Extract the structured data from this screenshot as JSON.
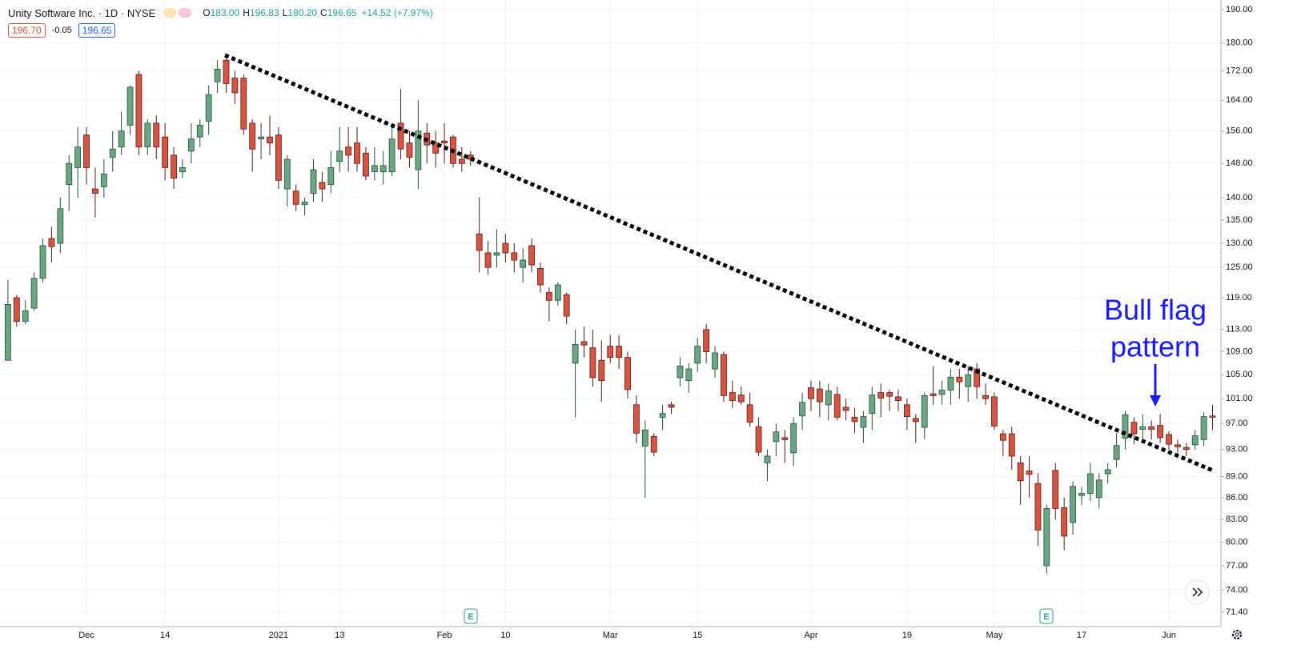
{
  "header": {
    "symbol": "Unity Software Inc. · 1D · NYSE",
    "ohlc": [
      {
        "key": "O",
        "value": "183.00"
      },
      {
        "key": "H",
        "value": "196.83"
      },
      {
        "key": "L",
        "value": "180.20"
      },
      {
        "key": "C",
        "value": "196.65"
      }
    ],
    "change": "+14.52 (+7.97%)",
    "bid": "196.70",
    "spread": "-0.05",
    "ask": "196.65"
  },
  "earnings_label": "E",
  "chart_data": {
    "type": "candlestick",
    "log_scale": true,
    "grid": true,
    "up_color": "#6ba583",
    "down_color": "#d75442",
    "up_border": "#225437",
    "down_border": "#5b1a13",
    "annotation": [
      "Bull flag",
      "pattern"
    ],
    "annotation_color": "#1a1aff",
    "ylim": [
      69.75,
      193
    ],
    "yticks": [
      {
        "value": 71.4,
        "label": "71.40"
      },
      {
        "value": 74,
        "label": "74.00"
      },
      {
        "value": 77,
        "label": "77.00"
      },
      {
        "value": 80,
        "label": "80.00"
      },
      {
        "value": 83,
        "label": "83.00"
      },
      {
        "value": 86,
        "label": "86.00"
      },
      {
        "value": 89,
        "label": "89.00"
      },
      {
        "value": 93,
        "label": "93.00"
      },
      {
        "value": 97,
        "label": "97.00"
      },
      {
        "value": 101,
        "label": "101.00"
      },
      {
        "value": 105,
        "label": "105.00"
      },
      {
        "value": 109,
        "label": "109.00"
      },
      {
        "value": 113,
        "label": "113.00"
      },
      {
        "value": 119,
        "label": "119.00"
      },
      {
        "value": 125,
        "label": "125.00"
      },
      {
        "value": 130,
        "label": "130.00"
      },
      {
        "value": 135,
        "label": "135.00"
      },
      {
        "value": 140,
        "label": "140.00"
      },
      {
        "value": 148,
        "label": "148.00"
      },
      {
        "value": 156,
        "label": "156.00"
      },
      {
        "value": 164,
        "label": "164.00"
      },
      {
        "value": 172,
        "label": "172.00"
      },
      {
        "value": 180,
        "label": "180.00"
      },
      {
        "value": 190,
        "label": "190.00"
      }
    ],
    "categories": [
      null,
      null,
      null,
      null,
      null,
      null,
      null,
      null,
      null,
      "Dec",
      null,
      null,
      null,
      null,
      null,
      null,
      null,
      null,
      "14",
      null,
      null,
      null,
      null,
      null,
      null,
      null,
      null,
      null,
      null,
      null,
      null,
      "2021",
      null,
      null,
      null,
      null,
      null,
      null,
      "13",
      null,
      null,
      null,
      null,
      null,
      null,
      null,
      null,
      null,
      null,
      null,
      "Feb",
      null,
      null,
      null,
      null,
      null,
      null,
      "10",
      null,
      null,
      null,
      null,
      null,
      null,
      null,
      null,
      null,
      null,
      null,
      "Mar",
      null,
      null,
      null,
      null,
      null,
      null,
      null,
      null,
      null,
      "15",
      null,
      null,
      null,
      null,
      null,
      null,
      null,
      null,
      null,
      null,
      null,
      null,
      "Apr",
      null,
      null,
      null,
      null,
      null,
      null,
      null,
      null,
      null,
      null,
      "19",
      null,
      null,
      null,
      null,
      null,
      null,
      null,
      null,
      null,
      "May",
      null,
      null,
      null,
      null,
      null,
      null,
      null,
      null,
      null,
      "17",
      null,
      null,
      null,
      null,
      null,
      null,
      null,
      null,
      null,
      "Jun",
      null,
      null,
      null,
      null,
      null
    ],
    "open": [
      107.5,
      119,
      114.5,
      117,
      122.8,
      131,
      130,
      143,
      147,
      155,
      142,
      142.5,
      149.5,
      152,
      157.5,
      171,
      152,
      158,
      154.5,
      150,
      146,
      151,
      154.5,
      158.5,
      169,
      175,
      170,
      170,
      158,
      154,
      154.5,
      155,
      142,
      141.5,
      138.4,
      141,
      143.5,
      143,
      148.5,
      152,
      153,
      150.5,
      146,
      146,
      146,
      158,
      153,
      146.5,
      155.5,
      153,
      153.5,
      154.5,
      149,
      150,
      132,
      128,
      127.5,
      130,
      128,
      125,
      129.5,
      124.8,
      120,
      118.5,
      119.6,
      107,
      110.8,
      109.7,
      107.5,
      110,
      110,
      108,
      100,
      93.5,
      95,
      98,
      100,
      104.5,
      104,
      107,
      113,
      106,
      108.5,
      102,
      101.6,
      100,
      96.5,
      91,
      94.2,
      94.8,
      92.5,
      98.2,
      102.8,
      102.6,
      100,
      101.7,
      99.6,
      98,
      96.4,
      98.6,
      102,
      102,
      101.3,
      100,
      97.8,
      96.4,
      101.8,
      101.7,
      102.4,
      104.6,
      103,
      106,
      101.5,
      101.3,
      95.4,
      95.4,
      91,
      89.8,
      88,
      77,
      89.9,
      84.6,
      82.6,
      86.3,
      86.6,
      86,
      89.4,
      91.5,
      94.7,
      97.2,
      96.1,
      96.5,
      96.7,
      95.3,
      93.7,
      93.3,
      93.7,
      94.5,
      98.2
    ],
    "high": [
      122.5,
      119.5,
      118.5,
      124,
      131,
      133.5,
      140,
      150,
      157,
      157,
      147,
      149,
      156,
      161,
      168,
      172,
      159,
      160,
      158,
      152,
      149,
      158,
      159,
      168,
      175,
      177,
      172,
      171,
      159,
      158,
      160,
      157,
      150,
      143,
      140,
      149,
      146,
      151,
      157,
      157,
      157,
      152,
      152,
      151,
      157,
      167,
      156,
      164,
      158,
      156,
      158,
      155,
      152,
      151,
      140,
      130.5,
      133,
      132,
      130,
      129,
      131,
      126,
      121,
      122,
      120,
      113,
      113.5,
      113,
      111,
      112,
      112,
      109,
      101.5,
      97.5,
      95.5,
      100,
      100.5,
      108,
      107,
      111.5,
      114,
      110,
      109,
      104,
      103,
      102,
      98,
      93,
      97,
      96,
      98,
      102,
      104,
      104,
      103.5,
      103,
      101,
      99.5,
      99,
      103,
      103.5,
      102.5,
      102.5,
      101,
      98.5,
      102,
      106.5,
      104,
      106,
      106,
      106.5,
      107,
      103.5,
      102,
      96,
      96.5,
      92,
      92,
      89.5,
      85,
      91,
      86,
      88.3,
      87.5,
      91,
      89.5,
      91,
      95.5,
      99,
      98,
      98.5,
      97.5,
      98.5,
      95.8,
      94.5,
      94,
      96,
      98.8,
      100
    ],
    "low": [
      107.5,
      113.5,
      114,
      116.5,
      122,
      126,
      128,
      137,
      140,
      143,
      135.5,
      140,
      146,
      150,
      155,
      150,
      150,
      149,
      144,
      142,
      144.5,
      148,
      152,
      155,
      166,
      166,
      163,
      155,
      146,
      149,
      150,
      142,
      138,
      137,
      136,
      139,
      139,
      141,
      146,
      146,
      146,
      144,
      144,
      143,
      145,
      149,
      147,
      142,
      148,
      147,
      148,
      147,
      146,
      147.5,
      124,
      123.5,
      125,
      126,
      124,
      122,
      124,
      120,
      114.5,
      117.5,
      114,
      98,
      108,
      103,
      100.5,
      107,
      106,
      101,
      94,
      86,
      92,
      96,
      98.5,
      103,
      102,
      105.5,
      107,
      104.5,
      100.5,
      99.5,
      100,
      96.5,
      92,
      88.3,
      92,
      91,
      90.5,
      96,
      99,
      98,
      97.5,
      97.5,
      97.5,
      95.5,
      94,
      96,
      98,
      99,
      99,
      96,
      94,
      94.6,
      100,
      100,
      100,
      101,
      100.5,
      101,
      100,
      96,
      92,
      90,
      85,
      86,
      79.5,
      76,
      83,
      79,
      81,
      85,
      85.5,
      84.5,
      88,
      90.3,
      93,
      93.8,
      94,
      94.5,
      94,
      93,
      92.5,
      92,
      93,
      93.5,
      96
    ],
    "close": [
      117.7,
      114.5,
      116.5,
      122.8,
      129.5,
      129.3,
      137.5,
      148,
      152,
      147,
      141,
      145.5,
      151.5,
      156,
      167.5,
      152,
      158,
      152,
      147,
      144.5,
      147,
      154,
      157.5,
      165.5,
      172.5,
      168.5,
      166,
      156.5,
      151.5,
      154.5,
      153,
      144,
      149,
      138.5,
      139,
      146.5,
      142,
      147,
      151,
      150,
      148,
      145,
      147.5,
      147.5,
      154,
      151.5,
      149.5,
      156,
      152.5,
      150.5,
      153,
      148,
      148,
      149,
      128.5,
      125,
      128,
      128,
      126.5,
      126.5,
      125.5,
      121.5,
      118.5,
      121.5,
      115.5,
      110.3,
      110.2,
      104.5,
      104,
      108,
      108,
      102.5,
      95.5,
      96,
      92.6,
      98.6,
      99.6,
      106.5,
      106,
      110,
      109,
      108.8,
      101.5,
      100.7,
      100.5,
      97.2,
      92.6,
      92,
      95.7,
      94.5,
      97,
      100.4,
      101,
      100.5,
      102.3,
      98,
      99.1,
      97.3,
      98.1,
      101.6,
      101.1,
      101.4,
      100.7,
      98.1,
      97.3,
      101.5,
      101.5,
      102.4,
      104.6,
      103.8,
      105,
      103,
      101,
      96.6,
      94.4,
      92,
      88.4,
      89.3,
      81.6,
      84.5,
      84.5,
      80.8,
      87.6,
      86.6,
      89.4,
      88.5,
      90,
      93.6,
      98.4,
      95.4,
      96.5,
      96.1,
      94.8,
      93.8,
      93.4,
      93,
      95.1,
      98.1,
      98
    ]
  }
}
